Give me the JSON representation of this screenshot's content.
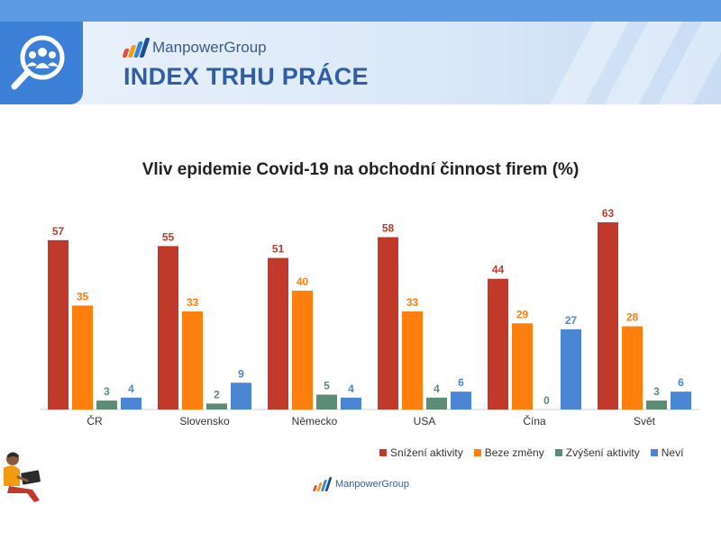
{
  "banner": {
    "brand": "ManpowerGroup",
    "title": "INDEX TRHU PRÁCE"
  },
  "footer": {
    "brand": "ManpowerGroup"
  },
  "colors": {
    "snizeni": "#c0392b",
    "beze": "#ff7f0e",
    "zvyseni": "#5b8c75",
    "nevi": "#4a86d3",
    "brand_blue": "#3b7fd6"
  },
  "icons": [
    "search-people-icon",
    "manpower-logo-icon",
    "person-laptop-illustration"
  ],
  "chart_data": {
    "type": "bar",
    "title": "Vliv epidemie Covid-19 na obchodní činnost firem (%)",
    "categories": [
      "ČR",
      "Slovensko",
      "Německo",
      "USA",
      "Čína",
      "Svět"
    ],
    "series": [
      {
        "name": "Snížení aktivity",
        "color": "#c0392b",
        "values": [
          57,
          55,
          51,
          58,
          44,
          63
        ]
      },
      {
        "name": "Beze změny",
        "color": "#ff7f0e",
        "values": [
          35,
          33,
          40,
          33,
          29,
          28
        ]
      },
      {
        "name": "Zvýšení aktivity",
        "color": "#5b8c75",
        "values": [
          3,
          2,
          5,
          4,
          0,
          3
        ]
      },
      {
        "name": "Neví",
        "color": "#4a86d3",
        "values": [
          4,
          9,
          4,
          6,
          27,
          6
        ]
      }
    ],
    "ylim": [
      0,
      70
    ],
    "grid": false,
    "legend": "bottom-right",
    "data_labels": true
  }
}
